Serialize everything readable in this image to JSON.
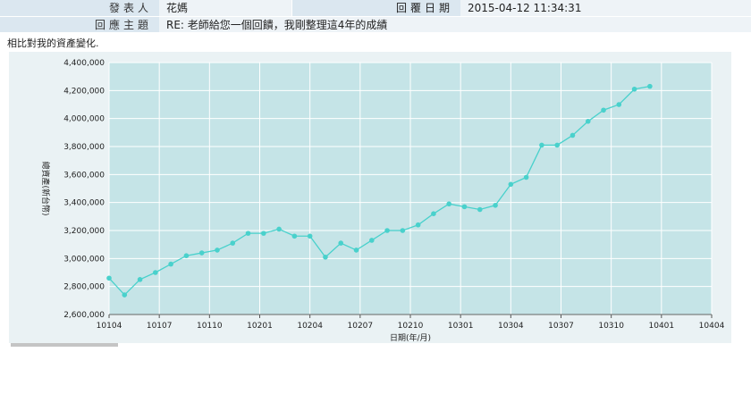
{
  "header": {
    "author_label": "發表人",
    "author_value": "花媽",
    "reply_date_label": "回覆日期",
    "reply_date_value": "2015-04-12 11:34:31",
    "subject_label": "回應主題",
    "subject_value": "RE: 老師給您一個回饋，我剛整理這4年的成績"
  },
  "body": {
    "text": "相比對我的資產變化."
  },
  "chart_data": {
    "type": "line",
    "xlabel": "日期(年/月)",
    "ylabel": "總資產(新台幣)",
    "x_tick_labels": [
      "10104",
      "10107",
      "10110",
      "10201",
      "10204",
      "10207",
      "10210",
      "10301",
      "10304",
      "10307",
      "10310",
      "10401",
      "10404"
    ],
    "y_tick_labels": [
      "2,600,000",
      "2,800,000",
      "3,000,000",
      "3,200,000",
      "3,400,000",
      "3,600,000",
      "3,800,000",
      "4,000,000",
      "4,200,000",
      "4,400,000"
    ],
    "ylim": [
      2600000,
      4400000
    ],
    "x_count": 40,
    "grid": true,
    "series": [
      {
        "color": "#49d1cc",
        "values": [
          2860000,
          2740000,
          2850000,
          2900000,
          2960000,
          3020000,
          3040000,
          3060000,
          3110000,
          3180000,
          3180000,
          3210000,
          3160000,
          3160000,
          3010000,
          3110000,
          3060000,
          3130000,
          3200000,
          3200000,
          3240000,
          3320000,
          3390000,
          3370000,
          3350000,
          3380000,
          3530000,
          3580000,
          3810000,
          3810000,
          3880000,
          3980000,
          4060000,
          4100000,
          4210000,
          4230000
        ]
      }
    ]
  }
}
